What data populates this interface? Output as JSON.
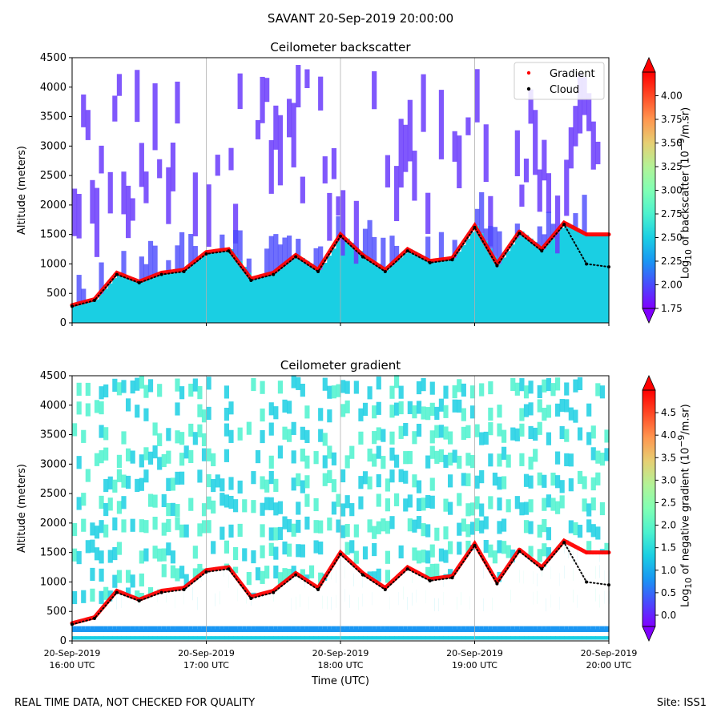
{
  "suptitle": "SAVANT 20-Sep-2019 20:00:00",
  "footer_left": "REAL TIME DATA, NOT CHECKED FOR QUALITY",
  "footer_right": "Site: ISS1",
  "colors": {
    "gradient_marker": "#ff0000",
    "cloud_marker": "#000000",
    "gridline": "#b0b0b0"
  },
  "colormap": [
    "#8000ff",
    "#4a4afd",
    "#1996f3",
    "#1acfe3",
    "#4cf2ce",
    "#80ffb4",
    "#b3f296",
    "#e6cf73",
    "#ff964f",
    "#ff4a26",
    "#ff0000"
  ],
  "chart_data": [
    {
      "type": "heatmap",
      "title": "Ceilometer backscatter",
      "ylabel": "Altitude (meters)",
      "xlabel": "",
      "ylim": [
        0,
        4500
      ],
      "yticks": [
        0,
        500,
        1000,
        1500,
        2000,
        2500,
        3000,
        3500,
        4000,
        4500
      ],
      "xlim": [
        "2019-09-20 16:00",
        "2019-09-20 20:00"
      ],
      "xticks": [
        "2019-09-20 16:00",
        "2019-09-20 17:00",
        "2019-09-20 18:00",
        "2019-09-20 19:00",
        "2019-09-20 20:00"
      ],
      "xtick_labels": [],
      "grid": "vertical",
      "legend": {
        "placement": "top-right",
        "entries": [
          {
            "name": "Gradient",
            "color": "#ff0000"
          },
          {
            "name": "Cloud",
            "color": "#000000"
          }
        ]
      },
      "colorbar": {
        "label_html": "Log<sub>10</sub> of backscatter (10<sup>−9</sup>/m.sr)",
        "label_plain": "Log10 of backscatter (10−9/m.sr)",
        "range": [
          1.75,
          4.25
        ],
        "ticks": [
          "1.75",
          "2.00",
          "2.25",
          "2.50",
          "2.75",
          "3.00",
          "3.25",
          "3.50",
          "3.75",
          "4.00"
        ],
        "extend": "both"
      },
      "series": [
        {
          "name": "Gradient",
          "x_minutes": [
            0,
            10,
            20,
            30,
            40,
            50,
            60,
            70,
            80,
            90,
            100,
            110,
            120,
            130,
            140,
            150,
            160,
            170,
            180,
            190,
            200,
            210,
            220,
            230,
            240
          ],
          "y": [
            300,
            400,
            850,
            700,
            850,
            900,
            1200,
            1250,
            750,
            850,
            1150,
            900,
            1500,
            1150,
            900,
            1250,
            1050,
            1100,
            1650,
            1000,
            1550,
            1250,
            1700,
            1500,
            1500
          ]
        },
        {
          "name": "Cloud",
          "x_minutes": [
            0,
            10,
            20,
            30,
            40,
            50,
            60,
            70,
            80,
            90,
            100,
            110,
            120,
            130,
            140,
            150,
            160,
            170,
            180,
            190,
            200,
            210,
            220,
            230,
            240
          ],
          "y": [
            280,
            380,
            820,
            680,
            820,
            870,
            1170,
            1220,
            720,
            820,
            1120,
            870,
            1470,
            1120,
            870,
            1220,
            1020,
            1070,
            1620,
            970,
            1520,
            1220,
            1670,
            1000,
            950
          ]
        }
      ]
    },
    {
      "type": "heatmap",
      "title": "Ceilometer gradient",
      "ylabel": "Altitude (meters)",
      "xlabel": "Time (UTC)",
      "ylim": [
        0,
        4500
      ],
      "yticks": [
        0,
        500,
        1000,
        1500,
        2000,
        2500,
        3000,
        3500,
        4000,
        4500
      ],
      "xlim": [
        "2019-09-20 16:00",
        "2019-09-20 20:00"
      ],
      "xticks": [
        "2019-09-20 16:00",
        "2019-09-20 17:00",
        "2019-09-20 18:00",
        "2019-09-20 19:00",
        "2019-09-20 20:00"
      ],
      "xtick_labels": [
        [
          "20-Sep-2019",
          "16:00 UTC"
        ],
        [
          "20-Sep-2019",
          "17:00 UTC"
        ],
        [
          "20-Sep-2019",
          "18:00 UTC"
        ],
        [
          "20-Sep-2019",
          "19:00 UTC"
        ],
        [
          "20-Sep-2019",
          "20:00 UTC"
        ]
      ],
      "grid": "vertical",
      "colorbar": {
        "label_html": "Log<sub>10</sub> of negative gradient (10<sup>−9</sup>/m.sr)",
        "label_plain": "Log10 of negative gradient (10−9/m.sr)",
        "range": [
          -0.25,
          5.0
        ],
        "ticks": [
          "0.0",
          "0.5",
          "1.0",
          "1.5",
          "2.0",
          "2.5",
          "3.0",
          "3.5",
          "4.0",
          "4.5"
        ],
        "extend": "both"
      },
      "series": [
        {
          "name": "Gradient",
          "x_minutes": [
            0,
            10,
            20,
            30,
            40,
            50,
            60,
            70,
            80,
            90,
            100,
            110,
            120,
            130,
            140,
            150,
            160,
            170,
            180,
            190,
            200,
            210,
            220,
            230,
            240
          ],
          "y": [
            300,
            400,
            850,
            700,
            850,
            900,
            1200,
            1250,
            750,
            850,
            1150,
            900,
            1500,
            1150,
            900,
            1250,
            1050,
            1100,
            1650,
            1000,
            1550,
            1250,
            1700,
            1500,
            1500
          ]
        },
        {
          "name": "Cloud",
          "x_minutes": [
            0,
            10,
            20,
            30,
            40,
            50,
            60,
            70,
            80,
            90,
            100,
            110,
            120,
            130,
            140,
            150,
            160,
            170,
            180,
            190,
            200,
            210,
            220,
            230,
            240
          ],
          "y": [
            280,
            380,
            820,
            680,
            820,
            870,
            1170,
            1220,
            720,
            820,
            1120,
            870,
            1470,
            1120,
            870,
            1220,
            1020,
            1070,
            1620,
            970,
            1520,
            1220,
            1670,
            1000,
            950
          ]
        }
      ]
    }
  ]
}
